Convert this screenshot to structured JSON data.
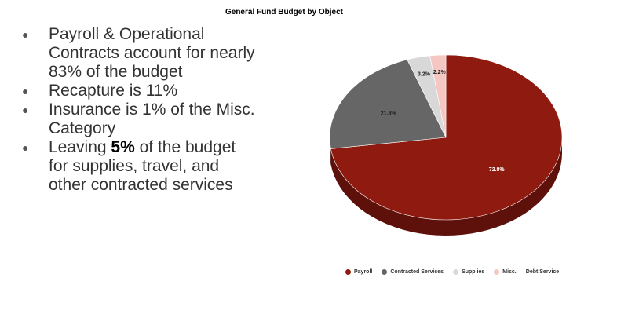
{
  "chart_data": {
    "type": "pie",
    "title": "General Fund Budget by Object",
    "three_d": true,
    "legend_position": "bottom",
    "slices": [
      {
        "name": "Payroll",
        "value": 72.8,
        "label": "72.8%",
        "color": "#8f1b10",
        "side_color": "#5e110a"
      },
      {
        "name": "Contracted Services",
        "value": 21.8,
        "label": "21.8%",
        "color": "#666666",
        "side_color": "#454545"
      },
      {
        "name": "Supplies",
        "value": 3.2,
        "label": "3.2%",
        "color": "#d8d8d8",
        "side_color": "#b5b5b5"
      },
      {
        "name": "Misc.",
        "value": 2.2,
        "label": "2.2%",
        "color": "#f4c7c3",
        "side_color": "#d9a9a5"
      },
      {
        "name": "Debt Service",
        "value": 0,
        "label": "",
        "color": "#ffffff",
        "side_color": "#ffffff"
      }
    ]
  },
  "bullets": [
    {
      "text": "Payroll & Operational Contracts account for nearly 83% of the budget"
    },
    {
      "text": "Recapture is 11%"
    },
    {
      "text": "Insurance is 1% of the Misc. Category"
    },
    {
      "pre": "Leaving ",
      "bold": "5%",
      "post": " of the budget for supplies, travel, and other contracted services"
    }
  ],
  "bullet_glyph": "●"
}
